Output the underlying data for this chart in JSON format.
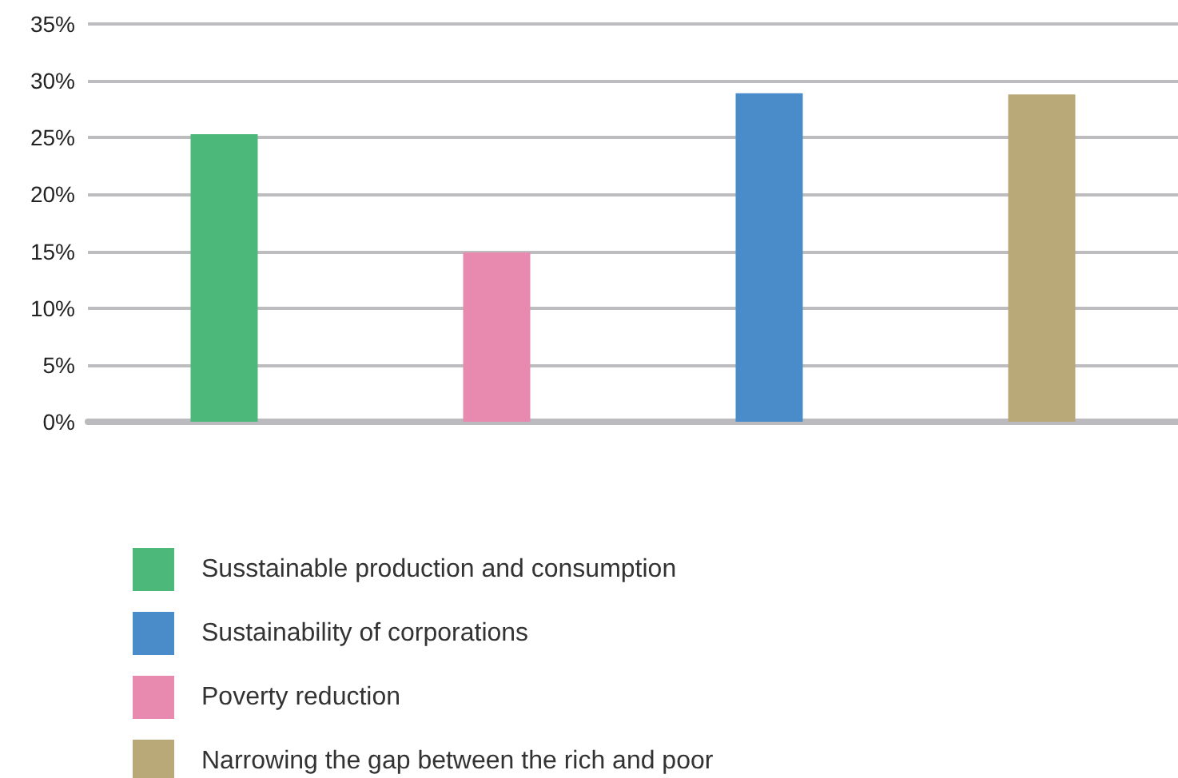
{
  "chart_data": {
    "type": "bar",
    "categories": [
      null,
      null,
      null,
      null
    ],
    "series": [
      {
        "name": "Susstainable production and consumption",
        "color": "#4cb87a",
        "values": [
          25.3,
          null,
          null,
          null
        ]
      },
      {
        "name": "Sustainability of corporations",
        "color": "#4a8cc9",
        "values": [
          null,
          null,
          28.9,
          null
        ]
      },
      {
        "name": "Poverty reduction",
        "color": "#e88ab0",
        "values": [
          null,
          14.9,
          null,
          null
        ]
      },
      {
        "name": "Narrowing the gap between the rich and poor",
        "color": "#b9a878",
        "values": [
          null,
          null,
          null,
          28.8
        ]
      }
    ],
    "ylim": [
      0,
      35
    ],
    "yticks": [
      {
        "value": 0,
        "label": "0%"
      },
      {
        "value": 5,
        "label": "5%"
      },
      {
        "value": 10,
        "label": "10%"
      },
      {
        "value": 15,
        "label": "15%"
      },
      {
        "value": 20,
        "label": "20%"
      },
      {
        "value": 25,
        "label": "25%"
      },
      {
        "value": 30,
        "label": "30%"
      },
      {
        "value": 35,
        "label": "35%"
      }
    ],
    "grid": "y",
    "legend": "bottom"
  }
}
